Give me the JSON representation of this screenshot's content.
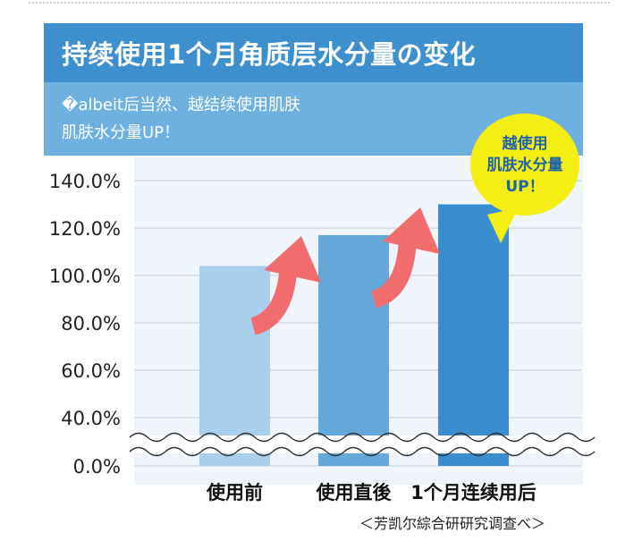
{
  "header": {
    "title": "持续使用1个月角质层水分量の变化",
    "subtitle_line1": "�albeit后当然、越结续使用肌肤",
    "subtitle_line2": "肌肤水分量UP！"
  },
  "bubble": {
    "line1": "越使用",
    "line2": "肌肤水分量",
    "line3": "UP！"
  },
  "source_note": "＜芳凯尔綜合研研究调查べ＞",
  "colors": {
    "header_bg": "#3d8fcd",
    "subhead_bg": "#6eb0e0",
    "bar_colors": [
      "#a9d1ee",
      "#64a9da",
      "#3a8ecf"
    ],
    "arrow": "#f26e6e",
    "bubble": "#f5ee12"
  },
  "chart_data": {
    "type": "bar",
    "categories": [
      "使用前",
      "使用直後",
      "1个月连续用后"
    ],
    "values": [
      104,
      117,
      130
    ],
    "ylim": [
      0,
      140
    ],
    "yticks": [
      "140.0%",
      "120.0%",
      "100.0%",
      "80.0%",
      "60.0%",
      "40.0%",
      "0.0%"
    ],
    "broken_axis": true,
    "grid": true,
    "title": "",
    "xlabel": "",
    "ylabel": ""
  }
}
